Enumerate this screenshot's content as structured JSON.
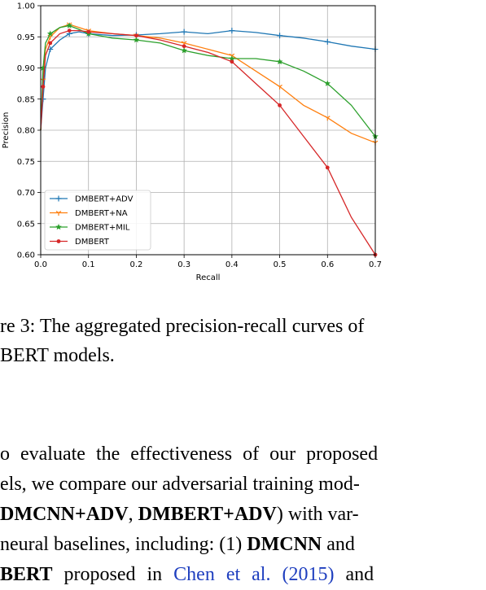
{
  "chart_data": {
    "type": "line",
    "xlabel": "Recall",
    "ylabel": "Precision",
    "xlim": [
      0.0,
      0.7
    ],
    "ylim": [
      0.6,
      1.0
    ],
    "xticks": [
      "0.0",
      "0.1",
      "0.2",
      "0.3",
      "0.4",
      "0.5",
      "0.6",
      "0.7"
    ],
    "yticks": [
      "0.60",
      "0.65",
      "0.70",
      "0.75",
      "0.80",
      "0.85",
      "0.90",
      "0.95",
      "1.00"
    ],
    "grid": true,
    "legend_position": "lower-left",
    "series": [
      {
        "name": "DMBERT+ADV",
        "color": "#1f77b4",
        "marker": "plus",
        "points": [
          [
            0.0,
            0.8
          ],
          [
            0.005,
            0.85
          ],
          [
            0.01,
            0.9
          ],
          [
            0.02,
            0.93
          ],
          [
            0.04,
            0.945
          ],
          [
            0.06,
            0.955
          ],
          [
            0.08,
            0.958
          ],
          [
            0.1,
            0.955
          ],
          [
            0.15,
            0.952
          ],
          [
            0.2,
            0.953
          ],
          [
            0.25,
            0.955
          ],
          [
            0.3,
            0.958
          ],
          [
            0.35,
            0.955
          ],
          [
            0.4,
            0.96
          ],
          [
            0.45,
            0.957
          ],
          [
            0.5,
            0.952
          ],
          [
            0.55,
            0.948
          ],
          [
            0.6,
            0.942
          ],
          [
            0.65,
            0.935
          ],
          [
            0.7,
            0.93
          ]
        ]
      },
      {
        "name": "DMBERT+NA",
        "color": "#ff7f0e",
        "marker": "tri",
        "points": [
          [
            0.0,
            0.8
          ],
          [
            0.005,
            0.88
          ],
          [
            0.01,
            0.93
          ],
          [
            0.02,
            0.95
          ],
          [
            0.04,
            0.965
          ],
          [
            0.06,
            0.97
          ],
          [
            0.08,
            0.965
          ],
          [
            0.1,
            0.96
          ],
          [
            0.15,
            0.955
          ],
          [
            0.2,
            0.952
          ],
          [
            0.25,
            0.948
          ],
          [
            0.3,
            0.94
          ],
          [
            0.35,
            0.93
          ],
          [
            0.4,
            0.92
          ],
          [
            0.45,
            0.895
          ],
          [
            0.5,
            0.87
          ],
          [
            0.55,
            0.84
          ],
          [
            0.6,
            0.82
          ],
          [
            0.65,
            0.795
          ],
          [
            0.7,
            0.78
          ]
        ]
      },
      {
        "name": "DMBERT+MIL",
        "color": "#2ca02c",
        "marker": "star",
        "points": [
          [
            0.0,
            0.8
          ],
          [
            0.005,
            0.9
          ],
          [
            0.01,
            0.94
          ],
          [
            0.02,
            0.955
          ],
          [
            0.04,
            0.965
          ],
          [
            0.06,
            0.968
          ],
          [
            0.08,
            0.962
          ],
          [
            0.1,
            0.955
          ],
          [
            0.15,
            0.948
          ],
          [
            0.2,
            0.945
          ],
          [
            0.25,
            0.94
          ],
          [
            0.3,
            0.928
          ],
          [
            0.35,
            0.92
          ],
          [
            0.4,
            0.915
          ],
          [
            0.45,
            0.915
          ],
          [
            0.5,
            0.91
          ],
          [
            0.55,
            0.895
          ],
          [
            0.6,
            0.875
          ],
          [
            0.65,
            0.84
          ],
          [
            0.7,
            0.79
          ]
        ]
      },
      {
        "name": "DMBERT",
        "color": "#d62728",
        "marker": "circle",
        "points": [
          [
            0.0,
            0.8
          ],
          [
            0.005,
            0.87
          ],
          [
            0.01,
            0.92
          ],
          [
            0.02,
            0.94
          ],
          [
            0.04,
            0.955
          ],
          [
            0.06,
            0.96
          ],
          [
            0.08,
            0.96
          ],
          [
            0.1,
            0.958
          ],
          [
            0.15,
            0.955
          ],
          [
            0.2,
            0.952
          ],
          [
            0.25,
            0.945
          ],
          [
            0.3,
            0.935
          ],
          [
            0.35,
            0.925
          ],
          [
            0.4,
            0.91
          ],
          [
            0.45,
            0.875
          ],
          [
            0.5,
            0.84
          ],
          [
            0.55,
            0.79
          ],
          [
            0.6,
            0.74
          ],
          [
            0.65,
            0.66
          ],
          [
            0.7,
            0.6
          ]
        ]
      }
    ]
  },
  "caption": {
    "line1": "re 3: The aggregated precision-recall curves of",
    "line2": "BERT models."
  },
  "paragraph": {
    "line1": "o evaluate the effectiveness of our proposed",
    "line2": "els, we compare our adversarial training mod-",
    "line3_bold1": "DMCNN+ADV",
    "line3_mid": ", ",
    "line3_bold2": "DMBERT+ADV",
    "line3_tail": ") with var-",
    "line4_pre": " neural baselines, including: (1) ",
    "line4_bold": "DMCNN",
    "line4_tail": " and",
    "line5_bold": "BERT",
    "line5_mid": " proposed in ",
    "line5_cite": "Chen et al. (2015)",
    "line5_tail": " and"
  }
}
